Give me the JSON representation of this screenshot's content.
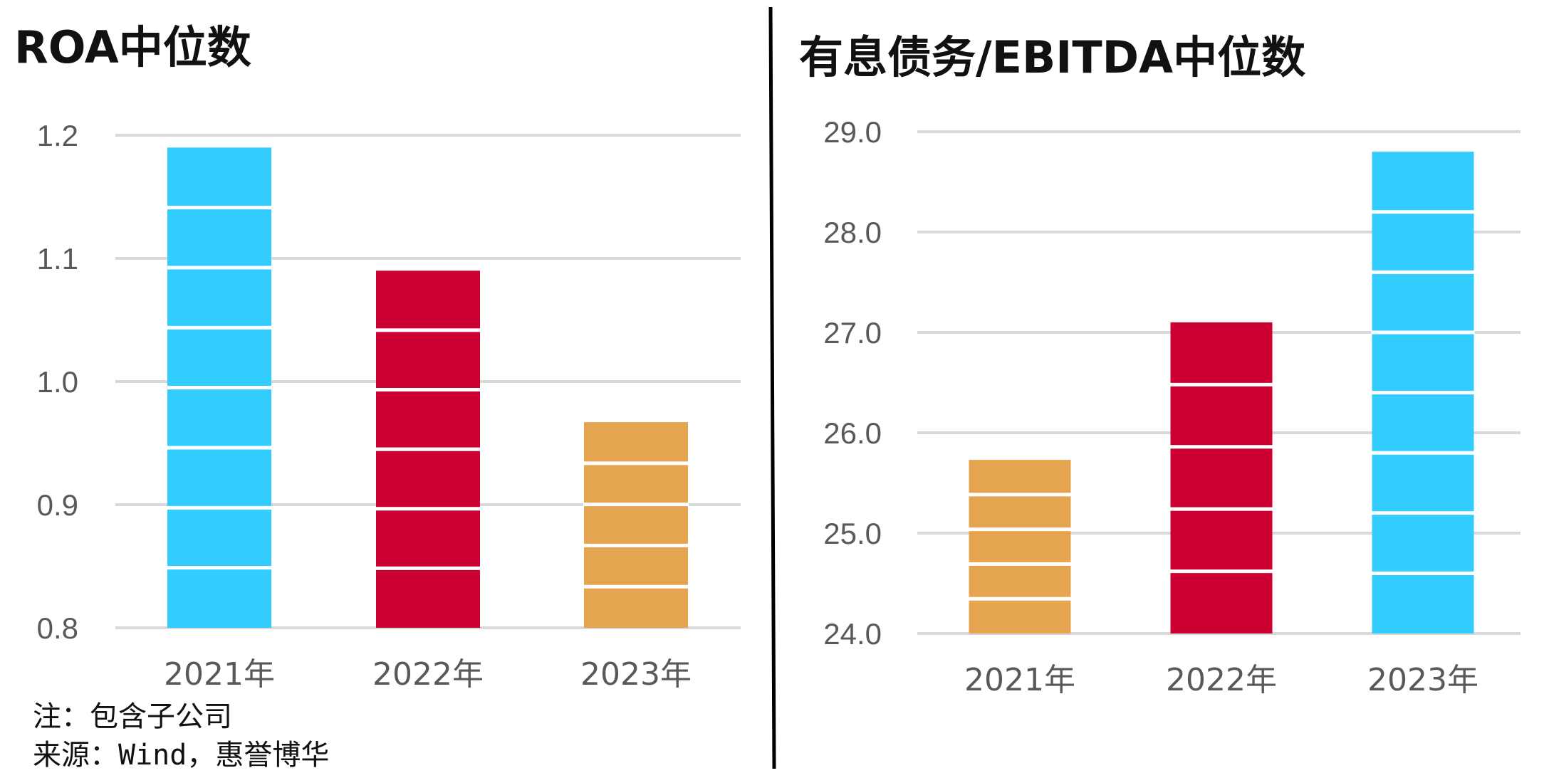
{
  "chart_data": [
    {
      "type": "bar",
      "title": "ROA中位数",
      "categories": [
        "2021年",
        "2022年",
        "2023年"
      ],
      "values": [
        1.19,
        1.09,
        0.967
      ],
      "colors": [
        "#33ccff",
        "#cc0033",
        "#e5a550"
      ],
      "ylim": [
        0.8,
        1.2
      ],
      "yticks": [
        "0.8",
        "0.9",
        "1.0",
        "1.1",
        "1.2"
      ],
      "grid": true,
      "legend": "none"
    },
    {
      "type": "bar",
      "title": "有息债务/EBITDA中位数",
      "categories": [
        "2021年",
        "2022年",
        "2023年"
      ],
      "values": [
        25.73,
        27.1,
        28.8
      ],
      "colors": [
        "#e5a550",
        "#cc0033",
        "#33ccff"
      ],
      "ylim": [
        24.0,
        29.0
      ],
      "yticks": [
        "24.0",
        "25.0",
        "26.0",
        "27.0",
        "28.0",
        "29.0"
      ],
      "grid": true,
      "legend": "none"
    }
  ],
  "notes": {
    "note": "注：包含子公司",
    "source": "来源：Wind，惠誉博华"
  },
  "style": {
    "divider_color": "#000000",
    "grid_color": "#d9d9d9",
    "bar_separator_color": "#ffffff"
  }
}
